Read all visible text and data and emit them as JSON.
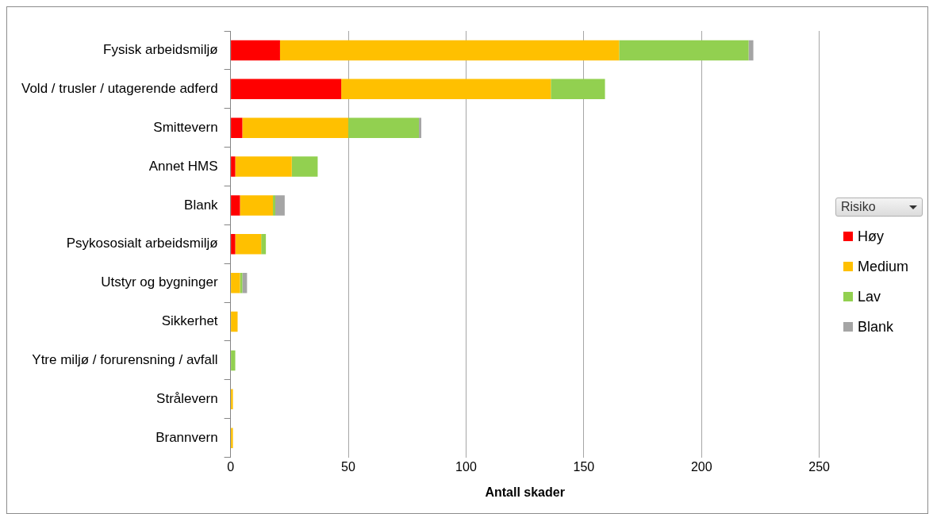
{
  "chart_data": {
    "type": "bar",
    "orientation": "horizontal",
    "stacked": true,
    "categories": [
      "Fysisk arbeidsmiljø",
      "Vold / trusler / utagerende adferd",
      "Smittevern",
      "Annet HMS",
      "Blank",
      "Psykososialt arbeidsmiljø",
      "Utstyr og bygninger",
      "Sikkerhet",
      "Ytre miljø / forurensning / avfall",
      "Strålevern",
      "Brannvern"
    ],
    "series": [
      {
        "name": "Høy",
        "color": "#ff0000",
        "values": [
          21,
          47,
          5,
          2,
          4,
          2,
          0,
          0,
          0,
          0,
          0
        ]
      },
      {
        "name": "Medium",
        "color": "#ffc000",
        "values": [
          144,
          89,
          45,
          24,
          14,
          11,
          4,
          3,
          0,
          1,
          1
        ]
      },
      {
        "name": "Lav",
        "color": "#92d050",
        "values": [
          55,
          23,
          30,
          11,
          1,
          2,
          1,
          0,
          2,
          0,
          0
        ]
      },
      {
        "name": "Blank",
        "color": "#a5a5a5",
        "values": [
          2,
          0,
          1,
          0,
          4,
          0,
          2,
          0,
          0,
          0,
          0
        ]
      }
    ],
    "xlim": [
      0,
      250
    ],
    "xticks": [
      0,
      50,
      100,
      150,
      200,
      250
    ],
    "xlabel": "Antall skader",
    "grid": "x",
    "legend": "right",
    "legend_title": "Risiko"
  }
}
